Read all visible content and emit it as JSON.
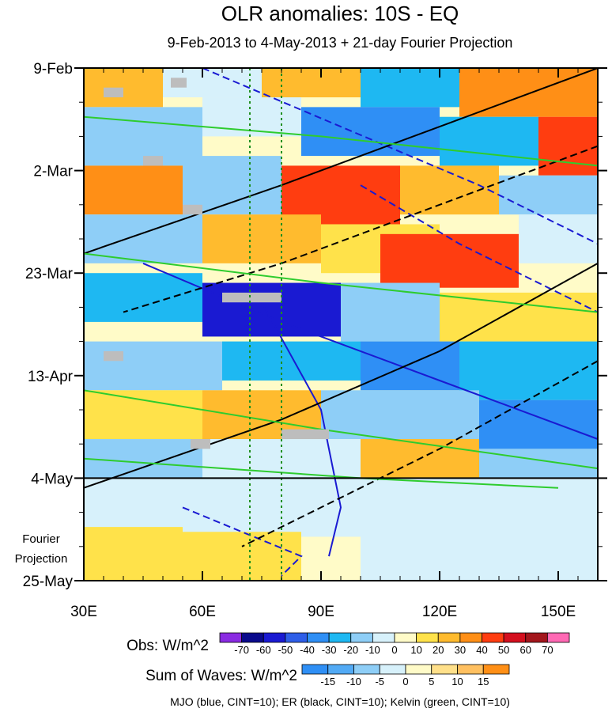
{
  "chart_data": {
    "type": "heatmap",
    "title": "OLR anomalies: 10S - EQ",
    "subtitle": "9-Feb-2013 to 4-May-2013 + 21-day Fourier Projection",
    "x_ticks": [
      {
        "value": 30,
        "label": "30E"
      },
      {
        "value": 60,
        "label": "60E"
      },
      {
        "value": 90,
        "label": "90E"
      },
      {
        "value": 120,
        "label": "120E"
      },
      {
        "value": 150,
        "label": "150E"
      }
    ],
    "xlim": [
      30,
      160
    ],
    "y_ticks": [
      {
        "day": 0,
        "label": "9-Feb"
      },
      {
        "day": 21,
        "label": "2-Mar"
      },
      {
        "day": 42,
        "label": "23-Mar"
      },
      {
        "day": 63,
        "label": "13-Apr"
      },
      {
        "day": 84,
        "label": "4-May"
      },
      {
        "day": 105,
        "label": "25-May"
      }
    ],
    "fourier_projection_label": [
      "Fourier",
      "Projection"
    ],
    "obs_colorbar": {
      "label": "Obs: W/m^2",
      "levels": [
        "-70",
        "-60",
        "-50",
        "-40",
        "-30",
        "-20",
        "-10",
        "0",
        "10",
        "20",
        "30",
        "40",
        "50",
        "60",
        "70"
      ],
      "colors": [
        "#8a2be2",
        "#0a0a8c",
        "#1a1ad2",
        "#2e5ee8",
        "#2f8ff5",
        "#1eb8f2",
        "#8ecef7",
        "#d7f1fb",
        "#fffbc8",
        "#ffe24a",
        "#ffbb2e",
        "#ff8f16",
        "#ff3d10",
        "#d40f1e",
        "#a3161c",
        "#ff69b4"
      ]
    },
    "waves_colorbar": {
      "label": "Sum of Waves: W/m^2",
      "levels": [
        "-15",
        "-10",
        "-5",
        "0",
        "5",
        "10",
        "15"
      ],
      "colors": [
        "#2f8ff5",
        "#52aaf5",
        "#8ecef7",
        "#d7f1fb",
        "#fffbc8",
        "#ffe08a",
        "#ffc060",
        "#ff8f16"
      ]
    },
    "contour_note": "MJO (blue, CINT=10); ER (black, CINT=10); Kelvin (green, CINT=10)",
    "reference_lines_lon": [
      72,
      80
    ],
    "cells": [
      {
        "lon": [
          30,
          50
        ],
        "day": [
          0,
          8
        ],
        "v": 20
      },
      {
        "lon": [
          50,
          75
        ],
        "day": [
          0,
          6
        ],
        "v": -10
      },
      {
        "lon": [
          75,
          100
        ],
        "day": [
          0,
          6
        ],
        "v": 20
      },
      {
        "lon": [
          100,
          125
        ],
        "day": [
          0,
          8
        ],
        "v": -30
      },
      {
        "lon": [
          125,
          160
        ],
        "day": [
          0,
          10
        ],
        "v": 30
      },
      {
        "lon": [
          30,
          60
        ],
        "day": [
          8,
          20
        ],
        "v": -20
      },
      {
        "lon": [
          60,
          85
        ],
        "day": [
          6,
          14
        ],
        "v": -10
      },
      {
        "lon": [
          85,
          120
        ],
        "day": [
          8,
          18
        ],
        "v": -40
      },
      {
        "lon": [
          120,
          145
        ],
        "day": [
          10,
          20
        ],
        "v": -30
      },
      {
        "lon": [
          145,
          160
        ],
        "day": [
          10,
          22
        ],
        "v": 40
      },
      {
        "lon": [
          30,
          55
        ],
        "day": [
          20,
          30
        ],
        "v": 30
      },
      {
        "lon": [
          55,
          80
        ],
        "day": [
          18,
          30
        ],
        "v": -20
      },
      {
        "lon": [
          80,
          110
        ],
        "day": [
          20,
          32
        ],
        "v": 40
      },
      {
        "lon": [
          110,
          135
        ],
        "day": [
          20,
          30
        ],
        "v": 20
      },
      {
        "lon": [
          135,
          160
        ],
        "day": [
          22,
          30
        ],
        "v": -20
      },
      {
        "lon": [
          30,
          60
        ],
        "day": [
          30,
          40
        ],
        "v": -20
      },
      {
        "lon": [
          60,
          90
        ],
        "day": [
          30,
          40
        ],
        "v": 20
      },
      {
        "lon": [
          90,
          120
        ],
        "day": [
          32,
          42
        ],
        "v": 10
      },
      {
        "lon": [
          105,
          140
        ],
        "day": [
          34,
          45
        ],
        "v": 40
      },
      {
        "lon": [
          140,
          160
        ],
        "day": [
          30,
          40
        ],
        "v": -10
      },
      {
        "lon": [
          30,
          60
        ],
        "day": [
          42,
          52
        ],
        "v": -30
      },
      {
        "lon": [
          60,
          95
        ],
        "day": [
          44,
          55
        ],
        "v": -60
      },
      {
        "lon": [
          95,
          120
        ],
        "day": [
          44,
          56
        ],
        "v": -20
      },
      {
        "lon": [
          120,
          160
        ],
        "day": [
          46,
          56
        ],
        "v": 10
      },
      {
        "lon": [
          30,
          65
        ],
        "day": [
          56,
          66
        ],
        "v": -20
      },
      {
        "lon": [
          65,
          100
        ],
        "day": [
          56,
          64
        ],
        "v": -30
      },
      {
        "lon": [
          100,
          125
        ],
        "day": [
          56,
          66
        ],
        "v": -40
      },
      {
        "lon": [
          125,
          160
        ],
        "day": [
          56,
          68
        ],
        "v": -30
      },
      {
        "lon": [
          30,
          60
        ],
        "day": [
          66,
          76
        ],
        "v": 10
      },
      {
        "lon": [
          60,
          90
        ],
        "day": [
          66,
          76
        ],
        "v": 20
      },
      {
        "lon": [
          90,
          130
        ],
        "day": [
          66,
          76
        ],
        "v": -20
      },
      {
        "lon": [
          130,
          160
        ],
        "day": [
          68,
          78
        ],
        "v": -40
      },
      {
        "lon": [
          30,
          60
        ],
        "day": [
          76,
          84
        ],
        "v": -20
      },
      {
        "lon": [
          60,
          100
        ],
        "day": [
          76,
          84
        ],
        "v": -10
      },
      {
        "lon": [
          100,
          130
        ],
        "day": [
          76,
          84
        ],
        "v": 20
      },
      {
        "lon": [
          130,
          160
        ],
        "day": [
          78,
          84
        ],
        "v": -20
      },
      {
        "lon": [
          30,
          160
        ],
        "day": [
          84,
          105
        ],
        "v": -5
      },
      {
        "lon": [
          30,
          55
        ],
        "day": [
          94,
          105
        ],
        "v": 10
      },
      {
        "lon": [
          55,
          85
        ],
        "day": [
          95,
          105
        ],
        "v": 15
      },
      {
        "lon": [
          85,
          100
        ],
        "day": [
          96,
          105
        ],
        "v": 5
      }
    ],
    "contours": [
      {
        "wave": "MJO",
        "dash": true,
        "pts": [
          [
            60,
            0
          ],
          [
            95,
            12
          ],
          [
            130,
            24
          ],
          [
            160,
            36
          ]
        ]
      },
      {
        "wave": "MJO",
        "dash": false,
        "pts": [
          [
            45,
            40
          ],
          [
            80,
            52
          ],
          [
            120,
            64
          ],
          [
            160,
            76
          ]
        ]
      },
      {
        "wave": "MJO",
        "dash": false,
        "pts": [
          [
            75,
            48
          ],
          [
            90,
            70
          ],
          [
            95,
            90
          ],
          [
            92,
            100
          ]
        ]
      },
      {
        "wave": "MJO",
        "dash": true,
        "pts": [
          [
            55,
            90
          ],
          [
            70,
            95
          ],
          [
            85,
            100
          ],
          [
            80,
            104
          ]
        ]
      },
      {
        "wave": "MJO",
        "dash": true,
        "pts": [
          [
            100,
            24
          ],
          [
            125,
            36
          ],
          [
            160,
            50
          ]
        ]
      },
      {
        "wave": "ER",
        "dash": false,
        "pts": [
          [
            160,
            0
          ],
          [
            120,
            12
          ],
          [
            80,
            24
          ],
          [
            30,
            38
          ]
        ]
      },
      {
        "wave": "ER",
        "dash": true,
        "pts": [
          [
            160,
            16
          ],
          [
            120,
            28
          ],
          [
            80,
            40
          ],
          [
            40,
            50
          ]
        ]
      },
      {
        "wave": "ER",
        "dash": false,
        "pts": [
          [
            160,
            40
          ],
          [
            120,
            58
          ],
          [
            80,
            72
          ],
          [
            30,
            86
          ]
        ]
      },
      {
        "wave": "ER",
        "dash": true,
        "pts": [
          [
            160,
            60
          ],
          [
            120,
            78
          ],
          [
            90,
            90
          ],
          [
            70,
            98
          ]
        ]
      },
      {
        "wave": "Kelvin",
        "dash": false,
        "pts": [
          [
            30,
            10
          ],
          [
            90,
            14
          ],
          [
            160,
            20
          ]
        ]
      },
      {
        "wave": "Kelvin",
        "dash": false,
        "pts": [
          [
            30,
            38
          ],
          [
            90,
            44
          ],
          [
            160,
            50
          ]
        ]
      },
      {
        "wave": "Kelvin",
        "dash": false,
        "pts": [
          [
            30,
            66
          ],
          [
            90,
            74
          ],
          [
            160,
            82
          ]
        ]
      },
      {
        "wave": "Kelvin",
        "dash": false,
        "pts": [
          [
            30,
            80
          ],
          [
            100,
            84
          ],
          [
            150,
            86
          ]
        ]
      }
    ],
    "missing_patches": [
      {
        "lon": [
          35,
          40
        ],
        "day": [
          4,
          6
        ]
      },
      {
        "lon": [
          52,
          56
        ],
        "day": [
          2,
          4
        ]
      },
      {
        "lon": [
          45,
          50
        ],
        "day": [
          18,
          20
        ]
      },
      {
        "lon": [
          55,
          60
        ],
        "day": [
          28,
          30
        ]
      },
      {
        "lon": [
          65,
          80
        ],
        "day": [
          46,
          48
        ]
      },
      {
        "lon": [
          80,
          92
        ],
        "day": [
          74,
          76
        ]
      },
      {
        "lon": [
          57,
          62
        ],
        "day": [
          76,
          78
        ]
      },
      {
        "lon": [
          35,
          40
        ],
        "day": [
          58,
          60
        ]
      }
    ]
  }
}
